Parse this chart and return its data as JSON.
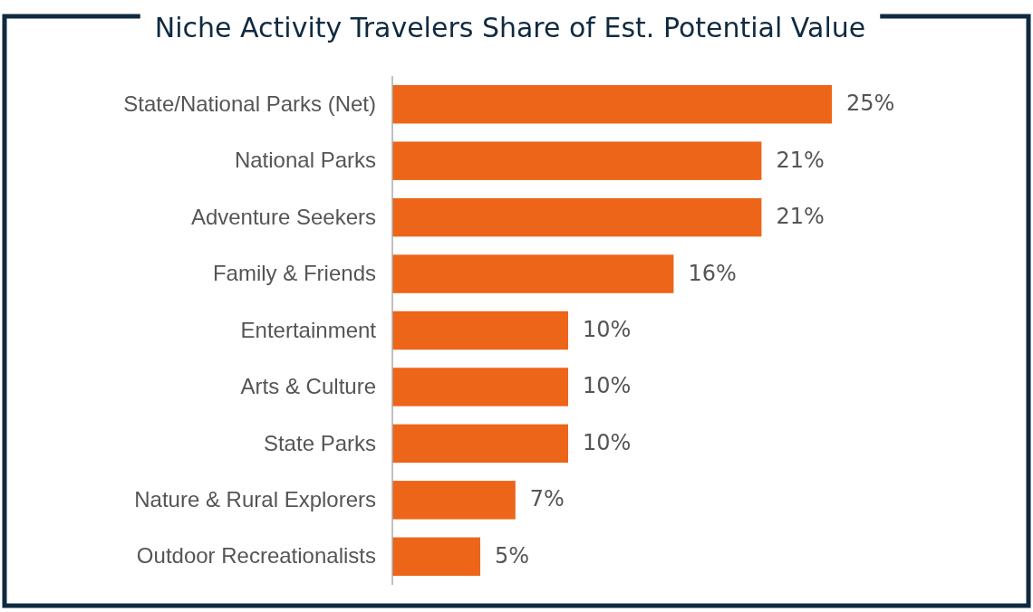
{
  "chart_data": {
    "type": "bar",
    "orientation": "horizontal",
    "title": "Niche Activity Travelers Share of Est. Potential Value",
    "categories": [
      "State/National Parks (Net)",
      "National Parks",
      "Adventure Seekers",
      "Family & Friends",
      "Entertainment",
      "Arts & Culture",
      "State Parks",
      "Nature & Rural Explorers",
      "Outdoor Recreationalists"
    ],
    "values": [
      25,
      21,
      21,
      16,
      10,
      10,
      10,
      7,
      5
    ],
    "value_labels": [
      "25%",
      "21%",
      "21%",
      "16%",
      "10%",
      "10%",
      "10%",
      "7%",
      "5%"
    ],
    "color": "#ec6519"
  }
}
